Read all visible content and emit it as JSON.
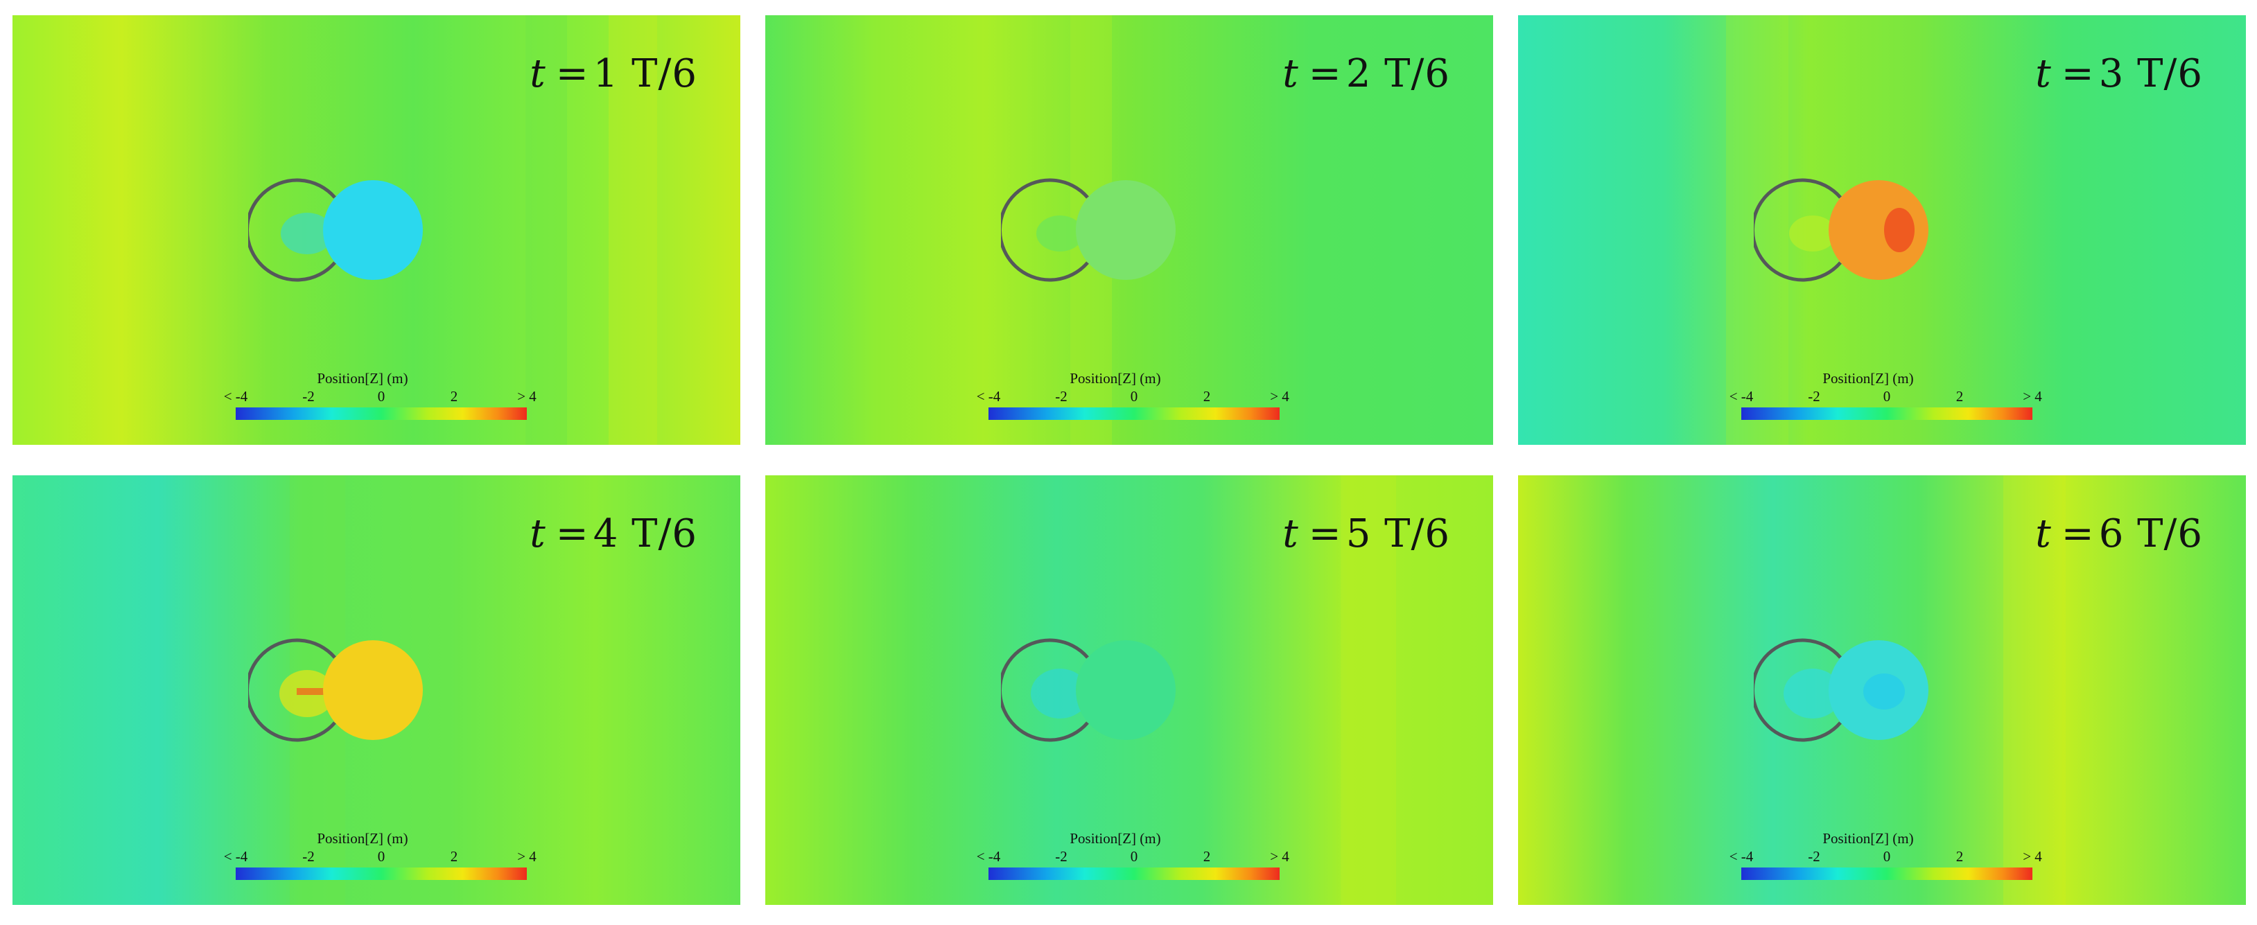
{
  "colorbar": {
    "title": "Position[Z] (m)",
    "ticks": [
      "< -4",
      "-2",
      "0",
      "2",
      "> 4"
    ],
    "colors": [
      "#1d2fd6",
      "#12a6ea",
      "#19ecd6",
      "#27f06c",
      "#b6f01d",
      "#f2e80f",
      "#f88d15",
      "#ee2b1e"
    ]
  },
  "panels": [
    {
      "var": "t",
      "eq": "=",
      "val": "1 T/6",
      "ring_fill": "#2bd8ee",
      "ring_color": "#55585a"
    },
    {
      "var": "t",
      "eq": "=",
      "val": "2 T/6",
      "ring_fill": "#7be36a",
      "ring_color": "#55585a"
    },
    {
      "var": "t",
      "eq": "=",
      "val": "3 T/6",
      "ring_fill": "#f39a28",
      "ring_color": "#55585a"
    },
    {
      "var": "t",
      "eq": "=",
      "val": "4 T/6",
      "ring_fill": "#f3d01c",
      "ring_color": "#55585a"
    },
    {
      "var": "t",
      "eq": "=",
      "val": "5 T/6",
      "ring_fill": "#3fe08d",
      "ring_color": "#55585a"
    },
    {
      "var": "t",
      "eq": "=",
      "val": "6 T/6",
      "ring_fill": "#38dbd6",
      "ring_color": "#55585a"
    }
  ]
}
